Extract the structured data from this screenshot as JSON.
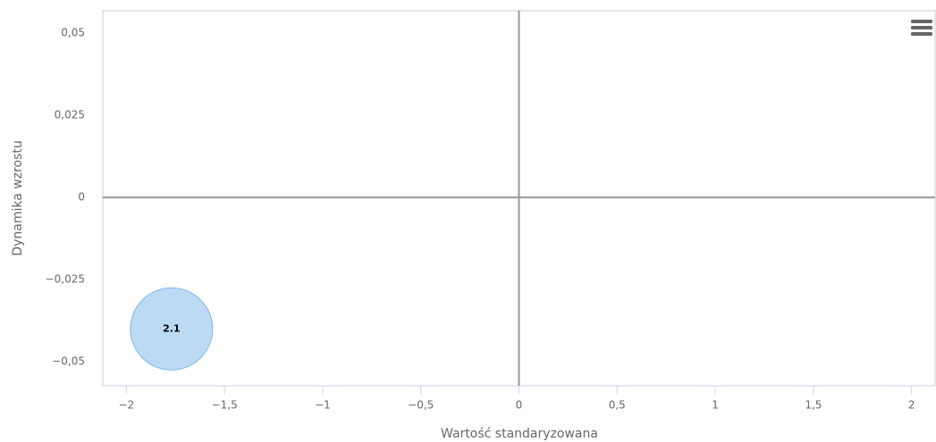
{
  "chart_data": {
    "type": "bubble",
    "x_label": "Wartość standaryzowana",
    "y_label": "Dynamika wzrostu",
    "x": [
      -1.77
    ],
    "values": [
      -0.04
    ],
    "labels": [
      "2.1"
    ],
    "color": "#7cb5ec",
    "xlim": [
      -2.12,
      2.12
    ],
    "xticks": [
      {
        "value": -2,
        "label": "−2"
      },
      {
        "value": -1.5,
        "label": "−1,5"
      },
      {
        "value": -1,
        "label": "−1"
      },
      {
        "value": -0.5,
        "label": "−0,5"
      },
      0,
      {
        "value": 0.5,
        "label": "0,5"
      },
      1,
      {
        "value": 1.5,
        "label": "1,5"
      },
      2
    ],
    "ylim": [
      -0.0573,
      0.0568
    ],
    "yticks": [
      {
        "value": -0.05,
        "label": "−0,05"
      },
      {
        "value": -0.025,
        "label": "−0,025"
      },
      0,
      {
        "value": 0.025,
        "label": "0,025"
      },
      {
        "value": 0.05,
        "label": "0,05"
      }
    ],
    "x_plot_line": 0,
    "y_plot_line": 0,
    "grid": false
  }
}
